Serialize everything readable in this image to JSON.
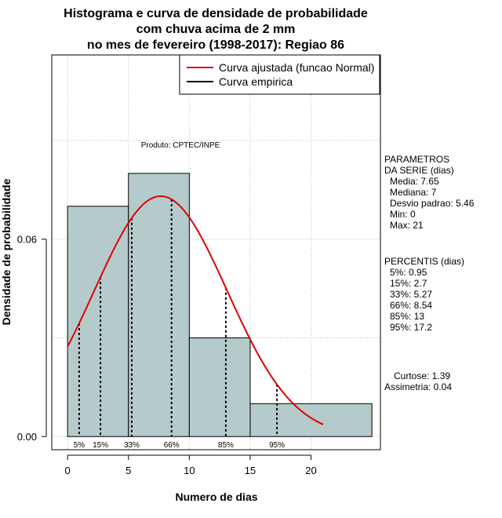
{
  "chart_data": {
    "type": "bar",
    "title_lines": [
      "Histograma e curva de densidade de probabilidade",
      "com chuva acima de 2 mm",
      "no mes de fevereiro (1998-2017): Regiao 86"
    ],
    "xlabel": "Numero de dias",
    "ylabel": "Densidade de probabilidade",
    "xlim": [
      -1.3,
      25.7
    ],
    "ylim": [
      -0.004,
      0.116
    ],
    "x_ticks": [
      0,
      5,
      10,
      15,
      20
    ],
    "y_ticks": [
      0.0,
      0.06
    ],
    "y_tick_labels": [
      "0.00",
      "0.06"
    ],
    "grid": true,
    "bins": [
      {
        "start": 0,
        "end": 5,
        "density": 0.07
      },
      {
        "start": 5,
        "end": 10,
        "density": 0.08
      },
      {
        "start": 10,
        "end": 15,
        "density": 0.03
      },
      {
        "start": 15,
        "end": 25,
        "density": 0.01
      }
    ],
    "normal_curve": {
      "mean": 7.65,
      "sd": 5.46,
      "from": 0,
      "to": 21
    },
    "percentiles": [
      {
        "label": "5%",
        "x": 0.95
      },
      {
        "label": "15%",
        "x": 2.7
      },
      {
        "label": "33%",
        "x": 5.27
      },
      {
        "label": "66%",
        "x": 8.54
      },
      {
        "label": "85%",
        "x": 13
      },
      {
        "label": "95%",
        "x": 17.2
      }
    ],
    "legend": {
      "position": "top-right",
      "entries": [
        {
          "label": "Curva ajustada (funcao Normal)",
          "color": "#e00000"
        },
        {
          "label": "Curva empirica",
          "color": "#000000"
        }
      ]
    },
    "annotation": "Produto: CPTEC/INPE",
    "colors": {
      "bars": "#b5cbcb",
      "curve": "#e00000",
      "grid": "#bdbdbd"
    }
  },
  "side_panel": {
    "params_header": [
      "PARAMETROS",
      "DA SERIE (dias)"
    ],
    "params": [
      "Media: 7.65",
      "Mediana: 7",
      "Desvio padrao: 5.46",
      "Min: 0",
      "Max: 21"
    ],
    "percentis_header": "PERCENTIS (dias)",
    "percentis": [
      "5%: 0.95",
      "15%: 2.7",
      "33%: 5.27",
      "66%: 8.54",
      "85%: 13",
      "95%: 17.2"
    ],
    "stats": [
      "Curtose: 1.39",
      "Assimetria: 0.04"
    ]
  }
}
